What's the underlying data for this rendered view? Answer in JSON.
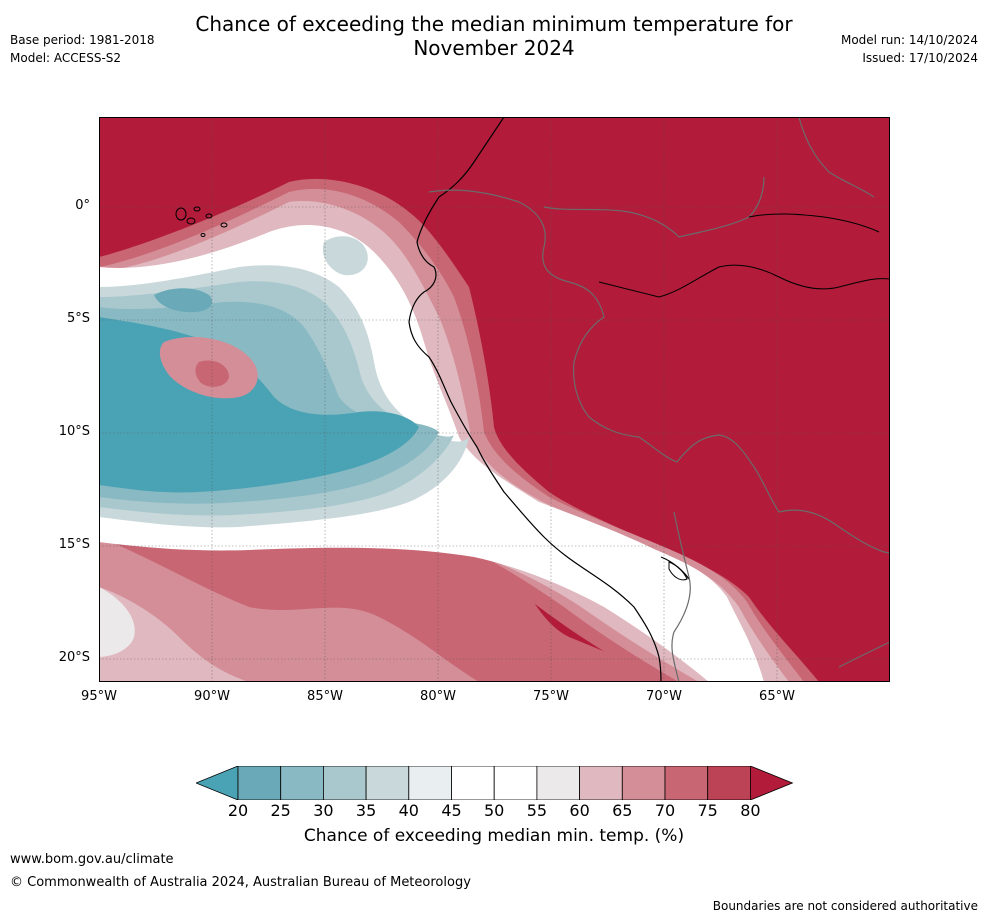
{
  "title": "Chance of exceeding the median minimum temperature for November 2024",
  "title_line1": "Chance of exceeding the median minimum temperature for",
  "title_line2": "November 2024",
  "base_period": "Base period: 1981-2018",
  "model": "Model: ACCESS-S2",
  "model_run": "Model run: 14/10/2024",
  "issued": "Issued: 17/10/2024",
  "map": {
    "lon_range": [
      -95,
      -60
    ],
    "lat_range": [
      -21,
      4
    ],
    "lon_ticks": [
      "95°W",
      "90°W",
      "85°W",
      "80°W",
      "75°W",
      "70°W",
      "65°W"
    ],
    "lat_ticks": [
      "0°",
      "5°S",
      "10°S",
      "15°S",
      "20°S"
    ],
    "grid": true
  },
  "colorbar": {
    "label": "Chance of exceeding median min. temp. (%)",
    "ticks": [
      "20",
      "25",
      "30",
      "35",
      "40",
      "45",
      "50",
      "55",
      "60",
      "65",
      "70",
      "75",
      "80"
    ],
    "colors": [
      "#4aa3b4",
      "#6aaab8",
      "#89b9c3",
      "#a9c8cd",
      "#c9d8da",
      "#e9eff1",
      "#ffffff",
      "#ffffff",
      "#ebe9ea",
      "#e0b8bf",
      "#d48e98",
      "#c86673",
      "#bc4355",
      "#b21c3a"
    ]
  },
  "footer": {
    "url": "www.bom.gov.au/climate",
    "copyright": "© Commonwealth of Australia 2024, Australian Bureau of Meteorology",
    "note": "Boundaries are not considered authoritative"
  }
}
